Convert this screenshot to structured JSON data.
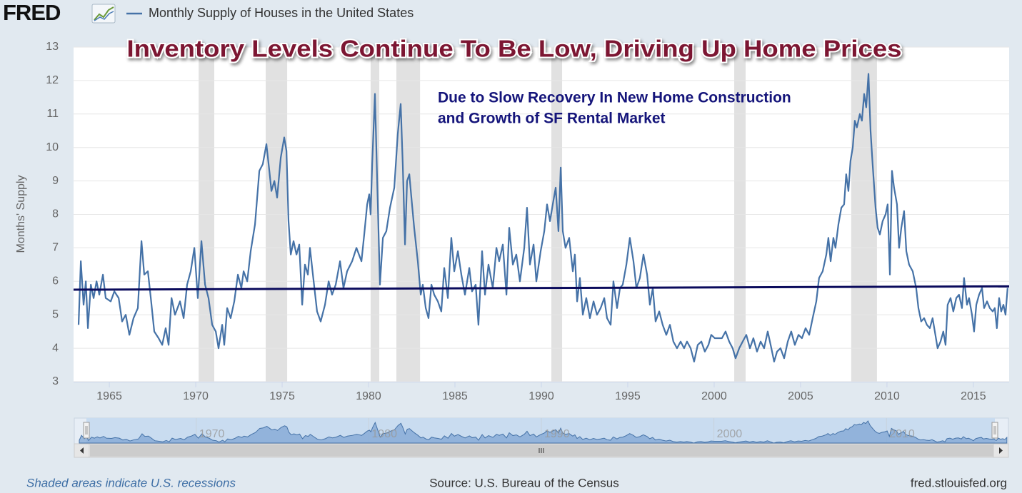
{
  "chart_data": {
    "type": "line",
    "logo": "FRED",
    "title": "Inventory Levels Continue To Be Low, Driving Up Home Prices",
    "annotation": [
      "Due to Slow Recovery In New Home Construction",
      "and Growth of SF Rental Market"
    ],
    "ylabel": "Months' Supply",
    "note": "Shaded areas indicate U.S. recessions",
    "source": "Source: U.S. Bureau of the Census",
    "website": "fred.stlouisfed.org",
    "xlim": [
      1962.93,
      2017.07
    ],
    "xticks": [
      1965,
      1970,
      1975,
      1980,
      1985,
      1990,
      1995,
      2000,
      2005,
      2010,
      2015
    ],
    "ylim": [
      3,
      13
    ],
    "yticks": [
      3,
      4,
      5,
      6,
      7,
      8,
      9,
      10,
      11,
      12,
      13
    ],
    "grid": true,
    "navigator_ticks": [
      1970,
      1980,
      1990,
      2000,
      2010
    ],
    "recessions": [
      [
        1970.17,
        1971.07
      ],
      [
        1974.05,
        1975.29
      ],
      [
        1980.12,
        1980.62
      ],
      [
        1981.61,
        1982.98
      ],
      [
        1990.58,
        1991.2
      ],
      [
        2001.16,
        2001.82
      ],
      [
        2007.93,
        2009.42
      ]
    ],
    "trend_line": {
      "color": "#0b0b5c",
      "x": [
        1962.93,
        2017.07
      ],
      "values": [
        5.75,
        5.85
      ]
    },
    "series": [
      {
        "name": "Monthly Supply of Houses in the United States",
        "color": "#4572a7",
        "x": [
          1963.22,
          1963.35,
          1963.51,
          1963.64,
          1963.76,
          1963.93,
          1964.09,
          1964.26,
          1964.42,
          1964.63,
          1964.79,
          1965.08,
          1965.29,
          1965.54,
          1965.74,
          1965.95,
          1966.16,
          1966.4,
          1966.65,
          1966.86,
          1967.02,
          1967.23,
          1967.4,
          1967.6,
          1967.85,
          1968.06,
          1968.26,
          1968.43,
          1968.6,
          1968.8,
          1969.09,
          1969.3,
          1969.5,
          1969.71,
          1969.92,
          1970.12,
          1970.33,
          1970.54,
          1970.74,
          1970.95,
          1971.16,
          1971.32,
          1971.53,
          1971.65,
          1971.82,
          1972.02,
          1972.23,
          1972.44,
          1972.64,
          1972.77,
          1972.98,
          1973.18,
          1973.43,
          1973.68,
          1973.88,
          1974.09,
          1974.26,
          1974.38,
          1974.55,
          1974.71,
          1974.92,
          1975.12,
          1975.25,
          1975.37,
          1975.5,
          1975.66,
          1975.83,
          1975.99,
          1976.16,
          1976.32,
          1976.49,
          1976.61,
          1976.78,
          1977.02,
          1977.23,
          1977.48,
          1977.69,
          1977.89,
          1978.1,
          1978.35,
          1978.55,
          1978.76,
          1979.05,
          1979.3,
          1979.59,
          1979.75,
          1979.92,
          1980.04,
          1980.12,
          1980.21,
          1980.37,
          1980.5,
          1980.66,
          1980.83,
          1981.03,
          1981.24,
          1981.49,
          1981.69,
          1981.86,
          1981.98,
          1982.11,
          1982.23,
          1982.36,
          1982.48,
          1982.64,
          1982.85,
          1983.02,
          1983.14,
          1983.31,
          1983.47,
          1983.64,
          1983.8,
          1984.01,
          1984.21,
          1984.38,
          1984.59,
          1984.79,
          1984.96,
          1985.17,
          1985.37,
          1985.58,
          1985.83,
          1985.99,
          1986.2,
          1986.36,
          1986.57,
          1986.74,
          1986.94,
          1987.19,
          1987.4,
          1987.56,
          1987.77,
          1987.98,
          1988.14,
          1988.35,
          1988.55,
          1988.76,
          1989.01,
          1989.17,
          1989.34,
          1989.55,
          1989.71,
          1989.96,
          1990.17,
          1990.33,
          1990.5,
          1990.66,
          1990.83,
          1990.99,
          1991.12,
          1991.24,
          1991.4,
          1991.61,
          1991.82,
          1991.94,
          1992.07,
          1992.23,
          1992.4,
          1992.6,
          1992.81,
          1993.02,
          1993.22,
          1993.43,
          1993.64,
          1993.8,
          1994.01,
          1994.17,
          1994.38,
          1994.55,
          1994.71,
          1994.92,
          1995.12,
          1995.33,
          1995.5,
          1995.7,
          1995.91,
          1996.12,
          1996.28,
          1996.45,
          1996.61,
          1996.82,
          1997.02,
          1997.23,
          1997.44,
          1997.64,
          1997.85,
          1998.06,
          1998.26,
          1998.43,
          1998.64,
          1998.84,
          1999.05,
          1999.26,
          1999.46,
          1999.67,
          1999.83,
          2000.04,
          2000.25,
          2000.45,
          2000.66,
          2000.87,
          2001.07,
          2001.24,
          2001.45,
          2001.65,
          2001.86,
          2002.07,
          2002.27,
          2002.48,
          2002.69,
          2002.89,
          2003.1,
          2003.31,
          2003.47,
          2003.64,
          2003.84,
          2004.05,
          2004.26,
          2004.46,
          2004.67,
          2004.88,
          2005.08,
          2005.29,
          2005.5,
          2005.7,
          2005.91,
          2006.07,
          2006.28,
          2006.49,
          2006.61,
          2006.74,
          2006.9,
          2007.02,
          2007.19,
          2007.36,
          2007.52,
          2007.64,
          2007.77,
          2007.89,
          2008.02,
          2008.14,
          2008.26,
          2008.43,
          2008.55,
          2008.68,
          2008.8,
          2008.93,
          2009.05,
          2009.17,
          2009.34,
          2009.46,
          2009.59,
          2009.75,
          2009.92,
          2010.04,
          2010.17,
          2010.29,
          2010.41,
          2010.58,
          2010.7,
          2010.83,
          2010.99,
          2011.12,
          2011.28,
          2011.49,
          2011.69,
          2011.82,
          2011.98,
          2012.15,
          2012.31,
          2012.48,
          2012.64,
          2012.77,
          2012.93,
          2013.1,
          2013.26,
          2013.39,
          2013.51,
          2013.68,
          2013.84,
          2014.01,
          2014.17,
          2014.34,
          2014.46,
          2014.63,
          2014.75,
          2014.92,
          2015.04,
          2015.17,
          2015.33,
          2015.5,
          2015.62,
          2015.79,
          2015.95,
          2016.12,
          2016.24,
          2016.36,
          2016.49,
          2016.61,
          2016.74,
          2016.86,
          2016.98
        ],
        "values": [
          4.7,
          6.6,
          5.3,
          6.0,
          4.6,
          5.9,
          5.5,
          6.0,
          5.6,
          6.2,
          5.5,
          5.4,
          5.7,
          5.5,
          4.8,
          5.0,
          4.4,
          4.9,
          5.2,
          7.2,
          6.2,
          6.3,
          5.5,
          4.5,
          4.3,
          4.1,
          4.6,
          4.1,
          5.5,
          5.0,
          5.4,
          4.9,
          5.9,
          6.3,
          7.0,
          5.5,
          7.2,
          5.9,
          5.5,
          4.7,
          4.5,
          4.0,
          4.7,
          4.1,
          5.2,
          4.9,
          5.4,
          6.2,
          5.8,
          6.3,
          6.0,
          6.9,
          7.7,
          9.3,
          9.5,
          10.1,
          9.3,
          8.7,
          9.0,
          8.5,
          9.7,
          10.3,
          9.9,
          7.8,
          6.8,
          7.2,
          6.8,
          7.1,
          5.3,
          6.5,
          6.2,
          7.0,
          6.2,
          5.1,
          4.8,
          5.3,
          6.0,
          5.6,
          5.9,
          6.6,
          5.8,
          6.3,
          6.6,
          7.0,
          6.6,
          7.4,
          8.3,
          8.6,
          8.0,
          9.5,
          11.6,
          9.0,
          5.9,
          7.3,
          7.5,
          8.2,
          8.8,
          10.4,
          11.3,
          9.5,
          7.1,
          9.0,
          9.2,
          8.5,
          7.6,
          6.6,
          5.6,
          5.9,
          5.2,
          4.9,
          5.9,
          5.6,
          5.4,
          5.1,
          6.4,
          5.5,
          7.3,
          6.3,
          6.9,
          6.2,
          5.6,
          6.4,
          5.7,
          5.9,
          4.7,
          6.9,
          5.6,
          6.5,
          5.8,
          7.0,
          6.6,
          7.1,
          5.6,
          7.6,
          6.5,
          6.8,
          6.0,
          7.0,
          8.2,
          6.5,
          7.1,
          6.0,
          6.9,
          7.5,
          8.3,
          7.8,
          8.3,
          8.8,
          7.5,
          9.4,
          7.5,
          7.0,
          7.3,
          6.3,
          6.8,
          5.4,
          6.1,
          5.0,
          5.5,
          4.9,
          5.4,
          5.0,
          5.2,
          5.5,
          4.9,
          4.7,
          6.0,
          5.2,
          5.8,
          5.9,
          6.5,
          7.3,
          6.6,
          5.8,
          6.1,
          6.8,
          6.2,
          5.3,
          5.8,
          4.8,
          5.1,
          4.7,
          4.4,
          4.7,
          4.2,
          4.0,
          4.2,
          4.0,
          4.2,
          4.0,
          3.6,
          4.1,
          4.2,
          3.9,
          4.1,
          4.4,
          4.3,
          4.3,
          4.3,
          4.5,
          4.2,
          4.0,
          3.7,
          4.0,
          4.2,
          4.4,
          4.0,
          4.3,
          3.9,
          4.2,
          4.0,
          4.5,
          4.0,
          3.6,
          3.9,
          4.0,
          3.7,
          4.2,
          4.5,
          4.1,
          4.4,
          4.3,
          4.6,
          4.4,
          4.9,
          5.4,
          6.1,
          6.3,
          6.8,
          7.3,
          6.6,
          7.3,
          7.0,
          7.7,
          8.2,
          8.3,
          9.2,
          8.7,
          9.6,
          10.0,
          10.8,
          10.6,
          11.0,
          10.8,
          11.6,
          11.2,
          12.2,
          10.5,
          9.5,
          8.2,
          7.6,
          7.4,
          7.8,
          8.0,
          8.3,
          6.2,
          9.3,
          8.8,
          8.3,
          7.0,
          7.6,
          8.1,
          6.9,
          6.5,
          6.3,
          5.8,
          5.2,
          4.8,
          4.9,
          4.7,
          4.6,
          4.9,
          4.5,
          4.0,
          4.2,
          4.5,
          4.1,
          5.3,
          5.5,
          5.1,
          5.5,
          5.6,
          5.2,
          6.1,
          5.3,
          5.5,
          5.0,
          4.5,
          5.3,
          5.6,
          5.8,
          5.2,
          5.4,
          5.2,
          5.1,
          5.2,
          4.6,
          5.5,
          5.1,
          5.3,
          5.0,
          5.8
        ]
      }
    ]
  }
}
